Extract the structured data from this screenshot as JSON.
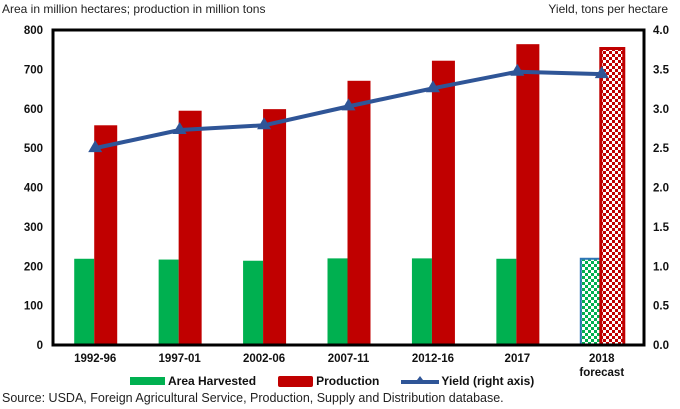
{
  "chart_data": {
    "type": "bar",
    "title": "",
    "left_axis_title": "Area in million hectares; production in million tons",
    "right_axis_title": "Yield, tons per hectare",
    "categories": [
      [
        "1992-96"
      ],
      [
        "1997-01"
      ],
      [
        "2002-06"
      ],
      [
        "2007-11"
      ],
      [
        "2012-16"
      ],
      [
        "2017"
      ],
      [
        "2018",
        "forecast"
      ]
    ],
    "y_left": {
      "min": 0,
      "max": 800,
      "ticks": [
        "0",
        "100",
        "200",
        "300",
        "400",
        "500",
        "600",
        "700",
        "800"
      ]
    },
    "y_right": {
      "min": 0,
      "max": 4.0,
      "ticks": [
        "0.0",
        "0.5",
        "1.0",
        "1.5",
        "2.0",
        "2.5",
        "3.0",
        "3.5",
        "4.0"
      ]
    },
    "series": [
      {
        "name": "Area Harvested",
        "kind": "bar",
        "axis": "left",
        "color": "#00b050",
        "values": [
          219,
          217,
          214,
          220,
          220,
          219,
          219
        ],
        "forecast_last": true,
        "forecast_border": "#2e75b6"
      },
      {
        "name": "Production",
        "kind": "bar",
        "axis": "left",
        "color": "#c00000",
        "values": [
          558,
          595,
          599,
          671,
          722,
          764,
          753
        ],
        "forecast_last": true,
        "forecast_border": "#c00000"
      },
      {
        "name": "Yield (right axis)",
        "kind": "line",
        "axis": "right",
        "color": "#2f5597",
        "marker": "triangle",
        "values": [
          2.5,
          2.73,
          2.79,
          3.03,
          3.26,
          3.47,
          3.44
        ]
      }
    ],
    "legend": {
      "placement": "bottom",
      "entries": [
        "Area Harvested",
        "Production",
        "Yield (right axis)"
      ]
    },
    "grid": false
  },
  "source": "Source: USDA, Foreign Agricultural Service, Production, Supply and Distribution database."
}
